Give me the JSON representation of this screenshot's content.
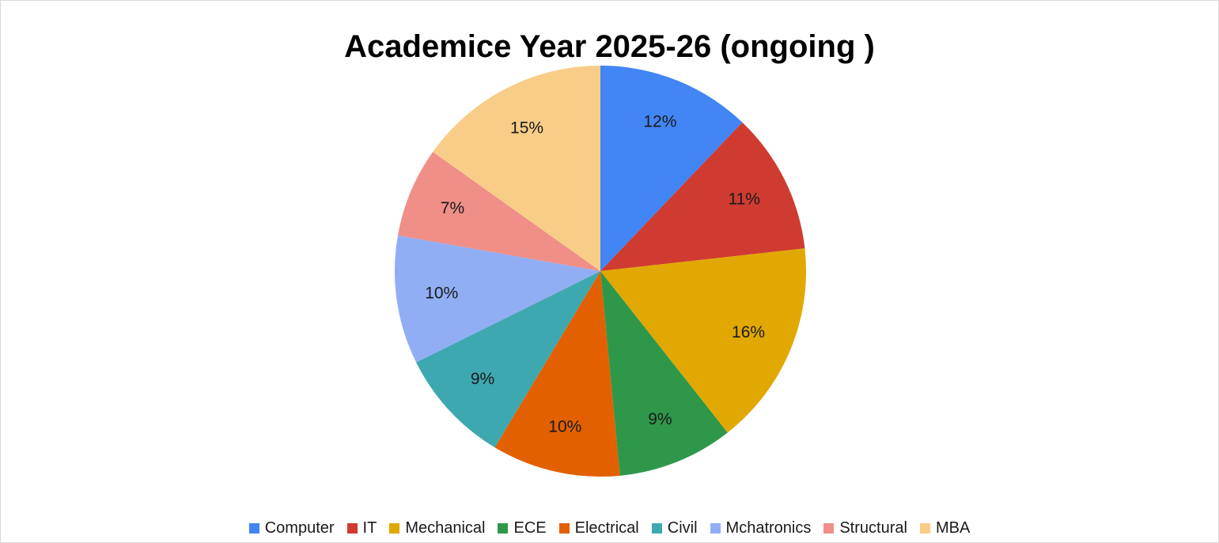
{
  "chart_data": {
    "type": "pie",
    "title": "Academice Year 2025-26 (ongoing )",
    "categories": [
      "Computer",
      "IT",
      "Mechanical",
      "ECE",
      "Electrical",
      "Civil",
      "Mchatronics",
      "Structural",
      "MBA"
    ],
    "values": [
      12,
      11,
      16,
      9,
      10,
      9,
      10,
      7,
      15
    ],
    "labels": [
      "12%",
      "11%",
      "16%",
      "9%",
      "10%",
      "9%",
      "10%",
      "7%",
      "15%"
    ],
    "colors": [
      "#4285f4",
      "#cf3b31",
      "#e0a800",
      "#2f974a",
      "#e26000",
      "#3ea8b0",
      "#91aef5",
      "#ef8f88",
      "#f8cd88"
    ],
    "legend_position": "bottom",
    "start_angle": "12 o'clock",
    "direction": "clockwise"
  }
}
